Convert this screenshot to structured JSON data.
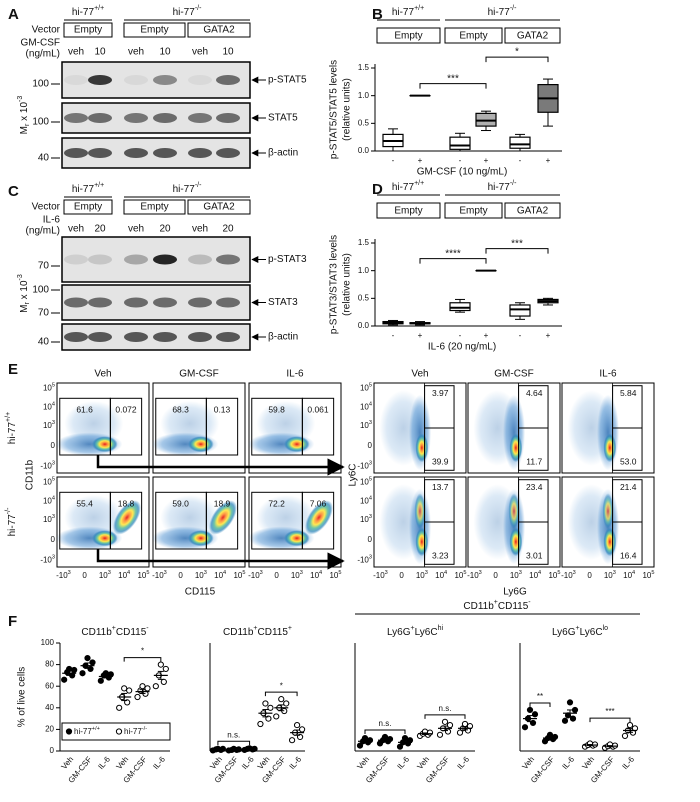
{
  "panel_a": {
    "label": "A",
    "genotypes": [
      [
        {
          "text": "hi-77"
        },
        {
          "text": "+/+",
          "sup": true
        }
      ],
      [
        {
          "text": "hi-77"
        },
        {
          "text": "-/-",
          "sup": true
        }
      ]
    ],
    "vector_label": "Vector",
    "vectors": [
      "Empty",
      "Empty",
      "GATA2"
    ],
    "treatment_label": [
      "GM-CSF",
      "(ng/mL)"
    ],
    "lanes": [
      "veh",
      "10",
      "veh",
      "10",
      "veh",
      "10"
    ],
    "mass_label": [
      {
        "text": "M"
      },
      {
        "text": "r",
        "sub": true
      },
      {
        "text": " x 10"
      },
      {
        "text": "-3",
        "sup": true
      }
    ],
    "blots": [
      {
        "name": "p-STAT5",
        "markers": [
          "100"
        ]
      },
      {
        "name": "STAT5",
        "markers": [
          "100"
        ]
      },
      {
        "name": "β-actin",
        "markers": [
          "40"
        ]
      }
    ]
  },
  "panel_c": {
    "label": "C",
    "genotypes": [
      [
        {
          "text": "hi-77"
        },
        {
          "text": "+/+",
          "sup": true
        }
      ],
      [
        {
          "text": "hi-77"
        },
        {
          "text": "-/-",
          "sup": true
        }
      ]
    ],
    "vector_label": "Vector",
    "vectors": [
      "Empty",
      "Empty",
      "GATA2"
    ],
    "treatment_label": [
      "IL-6",
      "(ng/mL)"
    ],
    "lanes": [
      "veh",
      "20",
      "veh",
      "20",
      "veh",
      "20"
    ],
    "mass_label": [
      {
        "text": "M"
      },
      {
        "text": "r",
        "sub": true
      },
      {
        "text": " x 10"
      },
      {
        "text": "-3",
        "sup": true
      }
    ],
    "blots": [
      {
        "name": "p-STAT3",
        "markers": [
          "70"
        ]
      },
      {
        "name": "STAT3",
        "markers": [
          "100",
          "70"
        ]
      },
      {
        "name": "β-actin",
        "markers": [
          "40"
        ]
      }
    ]
  },
  "panel_b": {
    "label": "B",
    "type": "box",
    "genotypes": [
      [
        {
          "text": "hi-77"
        },
        {
          "text": "+/+",
          "sup": true
        }
      ],
      [
        {
          "text": "hi-77"
        },
        {
          "text": "-/-",
          "sup": true
        }
      ]
    ],
    "groups": [
      "Empty",
      "Empty",
      "GATA2"
    ],
    "ylabel": [
      "p-STAT5/STAT5 levels",
      "(relative units)"
    ],
    "xlabel": "GM-CSF (10 ng/mL)",
    "categories": [
      "-",
      "+",
      "-",
      "+",
      "-",
      "+"
    ],
    "ylim": [
      0,
      1.5
    ],
    "yticks": [
      {
        "value": 0,
        "label": "0.0"
      },
      0.5,
      {
        "value": 1,
        "label": "1.0"
      },
      1.5
    ],
    "boxes": [
      {
        "min": 0.0,
        "q1": 0.08,
        "median": 0.18,
        "q3": 0.3,
        "max": 0.4,
        "fill": "#ffffff"
      },
      {
        "min": 1.0,
        "q1": 1.0,
        "median": 1.0,
        "q3": 1.0,
        "max": 1.0,
        "fill": "#ffffff"
      },
      {
        "min": 0.0,
        "q1": 0.03,
        "median": 0.1,
        "q3": 0.25,
        "max": 0.32,
        "fill": "#ffffff"
      },
      {
        "min": 0.37,
        "q1": 0.45,
        "median": 0.55,
        "q3": 0.68,
        "max": 0.72,
        "fill": "#b0b0b0"
      },
      {
        "min": 0.0,
        "q1": 0.05,
        "median": 0.12,
        "q3": 0.25,
        "max": 0.3,
        "fill": "#ffffff"
      },
      {
        "min": 0.45,
        "q1": 0.7,
        "median": 0.95,
        "q3": 1.2,
        "max": 1.3,
        "fill": "#7a7a7a"
      }
    ],
    "significance": [
      {
        "label": "***",
        "from": 1,
        "to": 3
      },
      {
        "label": "*",
        "from": 3,
        "to": 5
      }
    ]
  },
  "panel_d": {
    "label": "D",
    "type": "box",
    "genotypes": [
      [
        {
          "text": "hi-77"
        },
        {
          "text": "+/+",
          "sup": true
        }
      ],
      [
        {
          "text": "hi-77"
        },
        {
          "text": "-/-",
          "sup": true
        }
      ]
    ],
    "groups": [
      "Empty",
      "Empty",
      "GATA2"
    ],
    "ylabel": [
      "p-STAT3/STAT3 levels",
      "(relative units)"
    ],
    "xlabel": "IL-6 (20 ng/mL)",
    "categories": [
      "-",
      "+",
      "-",
      "+",
      "-",
      "+"
    ],
    "ylim": [
      0,
      1.5
    ],
    "yticks": [
      {
        "value": 0,
        "label": "0.0"
      },
      0.5,
      {
        "value": 1,
        "label": "1.0"
      },
      1.5
    ],
    "boxes": [
      {
        "min": 0.02,
        "q1": 0.04,
        "median": 0.06,
        "q3": 0.08,
        "max": 0.1,
        "fill": "#555555"
      },
      {
        "min": 0.02,
        "q1": 0.04,
        "median": 0.05,
        "q3": 0.06,
        "max": 0.08,
        "fill": "#ffffff"
      },
      {
        "min": 0.25,
        "q1": 0.28,
        "median": 0.33,
        "q3": 0.42,
        "max": 0.48,
        "fill": "#ffffff"
      },
      {
        "min": 1.0,
        "q1": 1.0,
        "median": 1.0,
        "q3": 1.0,
        "max": 1.0,
        "fill": "#ffffff"
      },
      {
        "min": 0.12,
        "q1": 0.18,
        "median": 0.3,
        "q3": 0.38,
        "max": 0.42,
        "fill": "#ffffff"
      },
      {
        "min": 0.38,
        "q1": 0.42,
        "median": 0.45,
        "q3": 0.48,
        "max": 0.5,
        "fill": "#9a9a9a"
      }
    ],
    "significance": [
      {
        "label": "****",
        "from": 1,
        "to": 3
      },
      {
        "label": "***",
        "from": 3,
        "to": 5
      }
    ]
  },
  "panel_e": {
    "label": "E",
    "rows": [
      [
        {
          "text": "hi-77"
        },
        {
          "text": "+/+",
          "sup": true
        }
      ],
      [
        {
          "text": "hi-77"
        },
        {
          "text": "-/-",
          "sup": true
        }
      ]
    ],
    "left": {
      "columns": [
        "Veh",
        "GM-CSF",
        "IL-6"
      ],
      "xlabel": "CD115",
      "ylabel": "CD11b",
      "ticks": [
        [
          {
            "text": "-10"
          },
          {
            "text": "3",
            "sup": true
          }
        ],
        [
          {
            "text": "0"
          }
        ],
        [
          {
            "text": "10"
          },
          {
            "text": "3",
            "sup": true
          }
        ],
        [
          {
            "text": "10"
          },
          {
            "text": "4",
            "sup": true
          }
        ],
        [
          {
            "text": "10"
          },
          {
            "text": "5",
            "sup": true
          }
        ]
      ],
      "gates": [
        [
          [
            "61.6",
            "0.072"
          ],
          [
            "68.3",
            "0.13"
          ],
          [
            "59.8",
            "0.061"
          ]
        ],
        [
          [
            "55.4",
            "18.8"
          ],
          [
            "59.0",
            "18.9"
          ],
          [
            "72.2",
            "7.06"
          ]
        ]
      ]
    },
    "right": {
      "columns": [
        "Veh",
        "GM-CSF",
        "IL-6"
      ],
      "xlabel": "Ly6G",
      "ylabel": "Ly6C",
      "ticks": [
        [
          {
            "text": "-10"
          },
          {
            "text": "3",
            "sup": true
          }
        ],
        [
          {
            "text": "0"
          }
        ],
        [
          {
            "text": "10"
          },
          {
            "text": "3",
            "sup": true
          }
        ],
        [
          {
            "text": "10"
          },
          {
            "text": "4",
            "sup": true
          }
        ],
        [
          {
            "text": "10"
          },
          {
            "text": "5",
            "sup": true
          }
        ]
      ],
      "gates": [
        [
          [
            "3.97",
            "39.9"
          ],
          [
            "4.64",
            "11.7"
          ],
          [
            "5.84",
            "53.0"
          ]
        ],
        [
          [
            "13.7",
            "3.23"
          ],
          [
            "23.4",
            "3.01"
          ],
          [
            "21.4",
            "16.4"
          ]
        ]
      ]
    }
  },
  "panel_f": {
    "label": "F",
    "header": [
      {
        "text": "CD11b"
      },
      {
        "text": "+",
        "sup": true
      },
      {
        "text": "CD115"
      },
      {
        "text": "-",
        "sup": true
      }
    ],
    "ylabel": "% of live cells",
    "legend": [
      {
        "name": [
          {
            "text": "hi-77"
          },
          {
            "text": "+/+",
            "sup": true
          }
        ]
      },
      {
        "name": [
          {
            "text": "hi-77"
          },
          {
            "text": "-/-",
            "sup": true
          }
        ]
      }
    ],
    "charts": [
      {
        "type": "dot",
        "title": [
          {
            "text": "CD11b"
          },
          {
            "text": "+",
            "sup": true
          },
          {
            "text": "CD115"
          },
          {
            "text": "-",
            "sup": true
          }
        ],
        "categories": [
          "Veh",
          "GM-CSF",
          "IL-6",
          "Veh",
          "GM-CSF",
          "IL-6"
        ],
        "ylim": [
          0,
          100
        ],
        "yticks": [
          0,
          20,
          40,
          60,
          80,
          100
        ],
        "series": [
          {
            "points": [
              [
                66,
                70,
                73,
                75,
                76
              ],
              [
                72,
                76,
                79,
                82,
                86
              ],
              [
                65,
                68,
                70,
                71,
                72
              ]
            ],
            "means": [
              72,
              79,
              69
            ],
            "sems": [
              2,
              2.5,
              1.3
            ]
          },
          {
            "points": [
              [
                40,
                45,
                50,
                56,
                58
              ],
              [
                50,
                53,
                56,
                58,
                60
              ],
              [
                60,
                64,
                70,
                76,
                80
              ]
            ],
            "means": [
              50,
              55,
              70
            ],
            "sems": [
              3.3,
              1.8,
              3.7
            ]
          }
        ],
        "significance": [
          {
            "label": "*",
            "from": 3,
            "to": 5
          }
        ]
      },
      {
        "type": "dot",
        "title": [
          {
            "text": "CD11b"
          },
          {
            "text": "+",
            "sup": true
          },
          {
            "text": "CD115"
          },
          {
            "text": "+",
            "sup": true
          }
        ],
        "categories": [
          "Veh",
          "GM-CSF",
          "IL-6",
          "Veh",
          "GM-CSF",
          "IL-6"
        ],
        "ylim": [
          0,
          100
        ],
        "series": [
          {
            "points": [
              [
                0.5,
                1,
                1.5,
                2,
                2
              ],
              [
                0.5,
                1,
                1,
                1.5,
                2
              ],
              [
                1,
                1.5,
                2,
                2,
                2.5
              ]
            ],
            "means": [
              1.4,
              1.2,
              1.8
            ],
            "sems": [
              0.3,
              0.25,
              0.25
            ]
          },
          {
            "points": [
              [
                25,
                30,
                35,
                40,
                44
              ],
              [
                32,
                37,
                40,
                44,
                48
              ],
              [
                10,
                13,
                17,
                20,
                24
              ]
            ],
            "means": [
              35,
              40,
              17
            ],
            "sems": [
              3.4,
              2.7,
              2.4
            ]
          }
        ],
        "significance": [
          {
            "label": "n.s.",
            "from": 0,
            "to": 2
          },
          {
            "label": "*",
            "from": 3,
            "to": 5
          }
        ]
      },
      {
        "type": "dot",
        "title": [
          {
            "text": "Ly6G"
          },
          {
            "text": "+",
            "sup": true
          },
          {
            "text": "Ly6C"
          },
          {
            "text": "hi",
            "sup": true
          }
        ],
        "categories": [
          "Veh",
          "GM-CSF",
          "IL-6",
          "Veh",
          "GM-CSF",
          "IL-6"
        ],
        "ylim": [
          0,
          100
        ],
        "series": [
          {
            "points": [
              [
                5,
                8,
                9,
                10,
                12
              ],
              [
                7,
                9,
                10,
                11,
                13
              ],
              [
                4,
                7,
                8,
                10,
                12
              ]
            ],
            "means": [
              9,
              10,
              8
            ],
            "sems": [
              1.2,
              1,
              1.4
            ]
          },
          {
            "points": [
              [
                14,
                15,
                16,
                17,
                18
              ],
              [
                15,
                18,
                21,
                24,
                27
              ],
              [
                17,
                19,
                21,
                23,
                25
              ]
            ],
            "means": [
              16,
              21,
              21
            ],
            "sems": [
              0.7,
              2.1,
              1.4
            ]
          }
        ],
        "significance": [
          {
            "label": "n.s.",
            "from": 0,
            "to": 2
          },
          {
            "label": "n.s.",
            "from": 3,
            "to": 5
          }
        ]
      },
      {
        "type": "dot",
        "title": [
          {
            "text": "Ly6G"
          },
          {
            "text": "+",
            "sup": true
          },
          {
            "text": "Ly6C"
          },
          {
            "text": "lo",
            "sup": true
          }
        ],
        "categories": [
          "Veh",
          "GM-CSF",
          "IL-6",
          "Veh",
          "GM-CSF",
          "IL-6"
        ],
        "ylim": [
          0,
          100
        ],
        "series": [
          {
            "points": [
              [
                22,
                26,
                30,
                34,
                38
              ],
              [
                9,
                11,
                12,
                13,
                15
              ],
              [
                28,
                30,
                33,
                38,
                45
              ]
            ],
            "means": [
              30,
              12,
              35
            ],
            "sems": [
              2.8,
              1,
              3
            ]
          },
          {
            "points": [
              [
                4,
                5,
                5.5,
                6,
                7
              ],
              [
                3,
                4,
                4.5,
                5,
                6
              ],
              [
                14,
                17,
                19,
                21,
                24
              ]
            ],
            "means": [
              5.5,
              4.5,
              19
            ],
            "sems": [
              0.5,
              0.5,
              1.7
            ]
          }
        ],
        "significance": [
          {
            "label": "**",
            "from": 0,
            "to": 1
          },
          {
            "label": "***",
            "from": 3,
            "to": 5
          }
        ]
      }
    ]
  }
}
